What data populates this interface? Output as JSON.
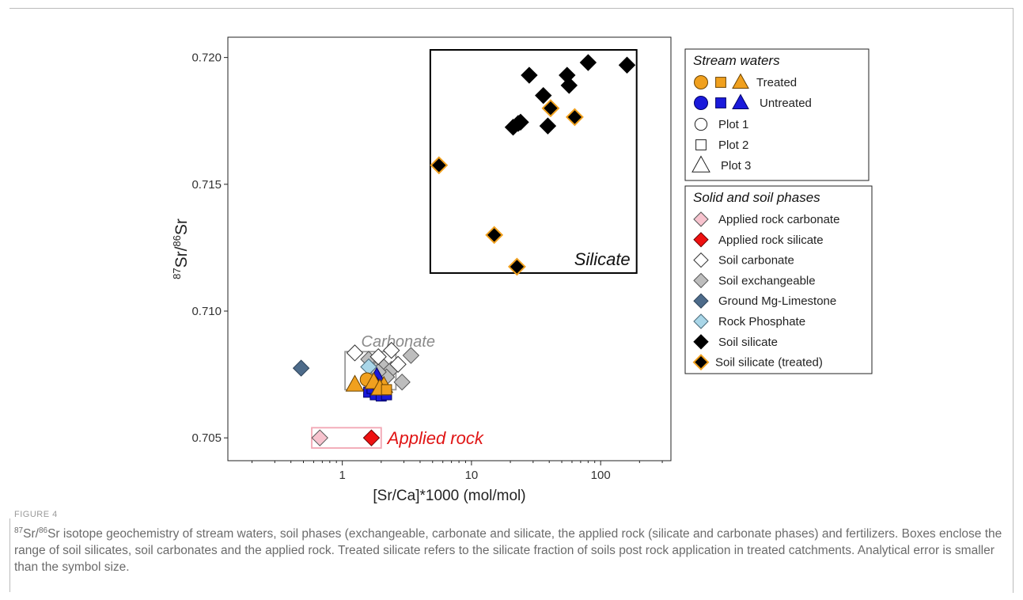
{
  "chart_data": {
    "type": "scatter",
    "xlabel": "[Sr/Ca]*1000 (mol/mol)",
    "ylabel": "87Sr/86Sr",
    "x_scale": "log",
    "xlim": [
      0.13,
      350
    ],
    "ylim": [
      0.7041,
      0.7208
    ],
    "x_ticks": [
      1,
      10,
      100
    ],
    "x_tick_labels": [
      "1",
      "10",
      "100"
    ],
    "y_ticks": [
      0.705,
      0.71,
      0.715,
      0.72
    ],
    "y_tick_labels": [
      "0.705",
      "0.710",
      "0.715",
      "0.720"
    ],
    "grid": false,
    "legend_position": "right",
    "legend_stream": {
      "title": "Stream waters",
      "entries": [
        "Treated",
        "Untreated",
        "Plot 1",
        "Plot 2",
        "Plot 3"
      ]
    },
    "legend_solid": {
      "title": "Solid and soil phases",
      "entries": [
        "Applied rock carbonate",
        "Applied rock silicate",
        "Soil carbonate",
        "Soil exchangeable",
        "Ground Mg-Limestone",
        "Rock Phosphate",
        "Soil silicate",
        "Soil silicate (treated)"
      ]
    },
    "boxes": [
      {
        "label": "Silicate",
        "x": [
          4.8,
          190
        ],
        "y": [
          0.7115,
          0.7203
        ],
        "color": "#000000"
      },
      {
        "label": "Carbonate",
        "x": [
          1.05,
          2.6
        ],
        "y": [
          0.7069,
          0.7084
        ],
        "color": "#999999"
      },
      {
        "label": "Applied rock",
        "x": [
          0.58,
          2.0
        ],
        "y": [
          0.7046,
          0.7054
        ],
        "color": "#f2a6b3"
      }
    ],
    "series": [
      {
        "name": "Ground Mg-Limestone",
        "marker": "diamond",
        "fill": "#4d6b8a",
        "stroke": "#2a3f55",
        "points": [
          [
            0.48,
            0.70775
          ]
        ]
      },
      {
        "name": "Soil exchangeable",
        "marker": "diamond",
        "fill": "#bdbdbd",
        "stroke": "#555555",
        "points": [
          [
            1.6,
            0.7081
          ],
          [
            2.0,
            0.7079
          ],
          [
            2.4,
            0.7077
          ],
          [
            2.9,
            0.7072
          ],
          [
            3.4,
            0.70825
          ],
          [
            2.2,
            0.7074
          ],
          [
            1.9,
            0.7076
          ]
        ]
      },
      {
        "name": "Soil carbonate",
        "marker": "diamond",
        "fill": "#ffffff",
        "stroke": "#333333",
        "points": [
          [
            1.25,
            0.70835
          ],
          [
            2.4,
            0.70845
          ],
          [
            1.9,
            0.7082
          ],
          [
            2.7,
            0.7079
          ]
        ]
      },
      {
        "name": "Rock Phosphate",
        "marker": "diamond",
        "fill": "#a9d6e8",
        "stroke": "#4a6a7a",
        "points": [
          [
            1.6,
            0.7078
          ]
        ]
      },
      {
        "name": "Untreated",
        "marker": "square",
        "fill": "#1a1adb",
        "stroke": "#000066",
        "points": [
          [
            1.6,
            0.7068
          ],
          [
            1.8,
            0.7067
          ],
          [
            2.0,
            0.70665
          ],
          [
            2.2,
            0.7067
          ],
          [
            1.7,
            0.70695
          ],
          [
            1.9,
            0.7071
          ]
        ]
      },
      {
        "name": "Untreated",
        "marker": "triangle",
        "fill": "#1a1adb",
        "stroke": "#000066",
        "points": [
          [
            1.85,
            0.7074
          ]
        ]
      },
      {
        "name": "Untreated",
        "marker": "circle",
        "fill": "#1a1adb",
        "stroke": "#000066",
        "points": [
          [
            1.7,
            0.7072
          ]
        ]
      },
      {
        "name": "Treated",
        "marker": "circle",
        "fill": "#f0a01e",
        "stroke": "#6b4300",
        "points": [
          [
            1.55,
            0.7073
          ]
        ]
      },
      {
        "name": "Treated",
        "marker": "triangle",
        "fill": "#f0a01e",
        "stroke": "#6b4300",
        "points": [
          [
            1.25,
            0.7071
          ],
          [
            1.75,
            0.7072
          ],
          [
            2.1,
            0.70705
          ],
          [
            1.95,
            0.70695
          ]
        ]
      },
      {
        "name": "Treated",
        "marker": "square",
        "fill": "#f0a01e",
        "stroke": "#6b4300",
        "points": [
          [
            2.2,
            0.7069
          ]
        ]
      },
      {
        "name": "Applied rock carbonate",
        "marker": "diamond",
        "fill": "#f7c3ce",
        "stroke": "#555555",
        "points": [
          [
            0.67,
            0.705
          ]
        ]
      },
      {
        "name": "Applied rock silicate",
        "marker": "diamond",
        "fill": "#ee1111",
        "stroke": "#660000",
        "points": [
          [
            1.68,
            0.705
          ]
        ]
      },
      {
        "name": "Soil silicate",
        "marker": "diamond",
        "fill": "#000000",
        "stroke": "#000000",
        "points": [
          [
            28,
            0.7193
          ],
          [
            55,
            0.7193
          ],
          [
            80,
            0.7198
          ],
          [
            160,
            0.7197
          ],
          [
            57,
            0.7189
          ],
          [
            36,
            0.7185
          ],
          [
            21,
            0.71725
          ],
          [
            23,
            0.7174
          ],
          [
            39,
            0.7173
          ],
          [
            24,
            0.71745
          ]
        ]
      },
      {
        "name": "Soil silicate (treated)",
        "marker": "diamond",
        "fill": "#000000",
        "stroke": "#f0a01e",
        "points": [
          [
            5.6,
            0.71575
          ],
          [
            41,
            0.718
          ],
          [
            63,
            0.71765
          ],
          [
            15,
            0.713
          ],
          [
            22.5,
            0.71175
          ]
        ]
      }
    ]
  },
  "legend_symbols": {
    "treated": [
      "circle",
      "square",
      "triangle"
    ],
    "untreated": [
      "circle",
      "square",
      "triangle"
    ],
    "plot1": "circle",
    "plot2": "square",
    "plot3": "triangle"
  },
  "caption": {
    "label": "FIGURE 4",
    "text_after_isotope": "Sr isotope geochemistry of stream waters, soil phases (exchangeable, carbonate and silicate, the applied rock (silicate and carbonate phases) and fertilizers. Boxes enclose the range of soil silicates, soil carbonates and the applied rock. Treated silicate refers to the silicate fraction of soils post rock application in treated catchments. Analytical error is smaller than the symbol size.",
    "sup1": "87",
    "mid": "Sr/",
    "sup2": "86"
  }
}
